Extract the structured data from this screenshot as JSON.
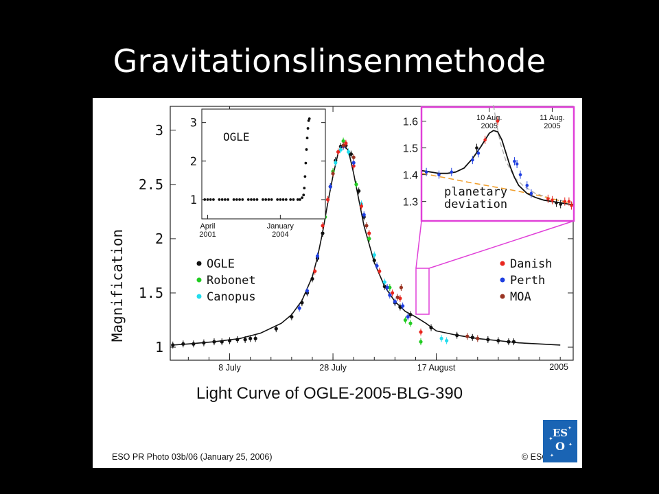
{
  "slide": {
    "title": "Gravitationslinsenmethode"
  },
  "figure": {
    "caption": "Light Curve of OGLE-2005-BLG-390",
    "credit_left": "ESO PR Photo 03b/06 (January 25, 2006)",
    "credit_right": "© ESO",
    "logo_text": "ESO"
  },
  "chart_data": [
    {
      "type": "scatter",
      "id": "main",
      "ylabel": "Magnification",
      "xlabel": "",
      "year_label": "2005",
      "x_ticks": [
        "8 July",
        "28 July",
        "17 August"
      ],
      "x_tick_days": [
        8,
        28,
        48
      ],
      "xlim": [
        -3.5,
        74.5
      ],
      "y_ticks": [
        "1",
        "1.5",
        "2",
        "2.5",
        "3"
      ],
      "y_tick_values": [
        1,
        1.5,
        2,
        2.5,
        3
      ],
      "ylim": [
        0.88,
        3.22
      ],
      "model_curve": {
        "x": [
          -3,
          0,
          5,
          10,
          14,
          18,
          20,
          22,
          24,
          25,
          26,
          27,
          28,
          29,
          30,
          31,
          32,
          33,
          34,
          36,
          38,
          40,
          42,
          44,
          46,
          48,
          52,
          56,
          60,
          64,
          68,
          72
        ],
        "y": [
          1.02,
          1.03,
          1.05,
          1.08,
          1.13,
          1.22,
          1.3,
          1.43,
          1.65,
          1.83,
          2.06,
          2.33,
          2.58,
          2.79,
          2.87,
          2.81,
          2.6,
          2.36,
          2.12,
          1.78,
          1.56,
          1.42,
          1.33,
          1.28,
          1.22,
          1.15,
          1.11,
          1.08,
          1.06,
          1.04,
          1.03,
          1.02
        ]
      },
      "series": [
        {
          "name": "OGLE",
          "color": "#111111",
          "x": [
            -3,
            -1,
            1,
            3,
            5,
            6.5,
            8,
            9.5,
            11,
            12,
            13,
            17,
            20,
            22,
            23,
            24,
            25,
            26,
            27.5,
            28.5,
            29.5,
            30.5,
            31.5,
            33,
            34,
            35,
            36,
            38,
            40,
            41,
            43,
            47,
            52,
            55,
            58,
            60,
            62,
            63
          ],
          "y": [
            1.02,
            1.03,
            1.03,
            1.04,
            1.05,
            1.05,
            1.06,
            1.07,
            1.07,
            1.08,
            1.08,
            1.17,
            1.28,
            1.41,
            1.5,
            1.63,
            1.82,
            2.05,
            2.48,
            2.72,
            2.85,
            2.86,
            2.78,
            2.44,
            2.2,
            2.0,
            1.8,
            1.56,
            1.41,
            1.37,
            1.3,
            1.18,
            1.11,
            1.09,
            1.07,
            1.06,
            1.05,
            1.05
          ]
        },
        {
          "name": "Robonet",
          "color": "#22cc22",
          "x": [
            26.5,
            28,
            30,
            32.5,
            35,
            39,
            42,
            43,
            45
          ],
          "y": [
            2.2,
            2.62,
            2.9,
            2.5,
            2.0,
            1.55,
            1.25,
            1.22,
            1.05
          ]
        },
        {
          "name": "Canopus",
          "color": "#22ddee",
          "x": [
            28.5,
            29.5,
            31,
            33.5,
            36,
            38,
            49,
            50
          ],
          "y": [
            2.7,
            2.82,
            2.8,
            2.32,
            1.85,
            1.6,
            1.08,
            1.06
          ]
        },
        {
          "name": "Danish",
          "color": "#e8261e",
          "x": [
            24.5,
            26,
            27,
            29,
            30.5,
            32,
            33.5,
            35,
            37,
            39.5,
            41,
            45
          ],
          "y": [
            1.7,
            2.12,
            2.36,
            2.8,
            2.88,
            2.67,
            2.3,
            2.05,
            1.7,
            1.5,
            1.45,
            1.14
          ]
        },
        {
          "name": "Perth",
          "color": "#1f3fe0",
          "x": [
            21.5,
            23,
            25,
            27.5,
            30,
            32,
            34,
            36.5,
            38.5,
            39,
            40,
            41.5,
            42.5
          ],
          "y": [
            1.36,
            1.52,
            1.84,
            2.48,
            2.85,
            2.7,
            2.22,
            1.75,
            1.55,
            1.48,
            1.42,
            1.38,
            1.28
          ]
        },
        {
          "name": "MOA",
          "color": "#993322",
          "x": [
            28,
            30,
            32,
            34.5,
            40.5,
            41.2,
            54,
            56
          ],
          "y": [
            2.6,
            2.86,
            2.75,
            2.12,
            1.46,
            1.55,
            1.1,
            1.08
          ]
        }
      ]
    },
    {
      "type": "scatter",
      "id": "inset-ogle",
      "title": "OGLE",
      "x_ticks": [
        "April\n2001",
        "January\n2004"
      ],
      "x_tick_values": [
        0,
        1000
      ],
      "xlim": [
        -80,
        1620
      ],
      "y_ticks": [
        "1",
        "2",
        "3"
      ],
      "y_tick_values": [
        1,
        2,
        3
      ],
      "ylim": [
        0.5,
        3.35
      ],
      "series": [
        {
          "name": "OGLE",
          "color": "#111111",
          "x": [
            -40,
            0,
            40,
            80,
            160,
            200,
            240,
            280,
            360,
            400,
            440,
            480,
            560,
            600,
            640,
            680,
            760,
            800,
            840,
            880,
            960,
            1000,
            1040,
            1080,
            1140,
            1180,
            1240,
            1270,
            1300,
            1320,
            1330,
            1340,
            1350,
            1360,
            1370,
            1380,
            1390,
            1400
          ],
          "y": [
            1,
            1,
            1,
            1,
            1,
            1,
            1,
            1,
            1,
            1,
            1,
            1,
            1,
            1,
            1,
            1,
            1,
            1,
            1,
            1,
            1,
            1,
            1,
            1,
            1,
            1,
            1,
            1,
            1.05,
            1.12,
            1.3,
            1.6,
            1.95,
            2.3,
            2.6,
            2.85,
            3.05,
            3.1
          ]
        }
      ]
    },
    {
      "type": "line",
      "id": "inset-zoom",
      "annotation": "planetary\ndeviation",
      "x_ticks": [
        "10 Aug.\n2005",
        "11 Aug.\n2005"
      ],
      "x_tick_values": [
        0.25,
        1.0
      ],
      "xlim": [
        -0.55,
        1.25
      ],
      "y_ticks": [
        "1.3",
        "1.4",
        "1.5",
        "1.6"
      ],
      "y_tick_values": [
        1.3,
        1.4,
        1.5,
        1.6
      ],
      "ylim": [
        1.23,
        1.65
      ],
      "model_curve": {
        "x": [
          -0.55,
          -0.45,
          -0.35,
          -0.25,
          -0.15,
          -0.05,
          0.05,
          0.15,
          0.25,
          0.3,
          0.35,
          0.4,
          0.45,
          0.5,
          0.55,
          0.6,
          0.7,
          0.8,
          0.9,
          1.0,
          1.1,
          1.2,
          1.25
        ],
        "y": [
          1.415,
          1.41,
          1.405,
          1.405,
          1.41,
          1.425,
          1.46,
          1.505,
          1.555,
          1.565,
          1.56,
          1.53,
          1.48,
          1.43,
          1.39,
          1.36,
          1.33,
          1.315,
          1.305,
          1.3,
          1.295,
          1.29,
          1.288
        ]
      },
      "no_planet_curve": {
        "x": [
          -0.55,
          -0.3,
          0,
          0.3,
          0.6,
          0.9,
          1.25
        ],
        "y": [
          1.405,
          1.39,
          1.372,
          1.355,
          1.338,
          1.318,
          1.29
        ]
      },
      "single_lens_curve": {
        "x": [
          0.3,
          0.33,
          0.38,
          0.45,
          0.55,
          0.65,
          0.8,
          1.0,
          1.25
        ],
        "y": [
          1.66,
          1.6,
          1.52,
          1.45,
          1.39,
          1.36,
          1.33,
          1.31,
          1.295
        ]
      },
      "series": [
        {
          "name": "Perth",
          "color": "#1f3fe0",
          "x": [
            -0.5,
            -0.35,
            -0.2,
            0.05,
            0.12,
            0.55,
            0.58,
            0.62,
            0.7,
            0.75
          ],
          "y": [
            1.41,
            1.4,
            1.41,
            1.455,
            1.48,
            1.45,
            1.44,
            1.4,
            1.36,
            1.33
          ]
        },
        {
          "name": "OGLE",
          "color": "#111111",
          "x": [
            0.1,
            1.05,
            1.1
          ],
          "y": [
            1.5,
            1.295,
            1.29
          ]
        },
        {
          "name": "Danish",
          "color": "#e8261e",
          "x": [
            0.2,
            0.35,
            0.95,
            1.0,
            1.15,
            1.2,
            1.23
          ],
          "y": [
            1.53,
            1.6,
            1.31,
            1.305,
            1.3,
            1.3,
            1.285
          ]
        }
      ]
    }
  ]
}
